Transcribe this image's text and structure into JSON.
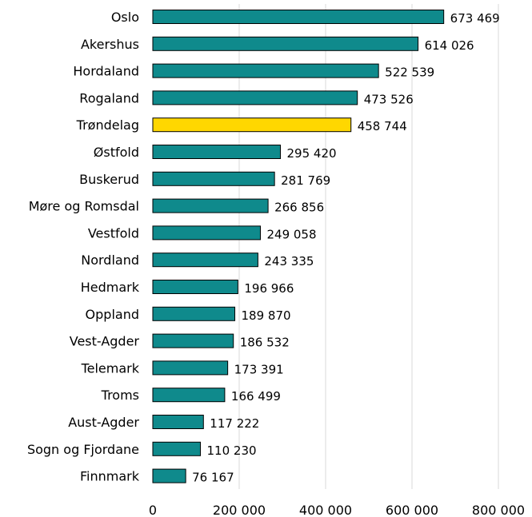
{
  "chart_data": {
    "type": "bar",
    "orientation": "horizontal",
    "title": "",
    "xlabel": "",
    "ylabel": "",
    "xlim": [
      0,
      800000
    ],
    "x_ticks": [
      0,
      200000,
      400000,
      600000,
      800000
    ],
    "x_tick_labels": [
      "0",
      "200 000",
      "400 000",
      "600 000",
      "800 000"
    ],
    "grid": "vertical",
    "legend": "none",
    "categories": [
      "Oslo",
      "Akershus",
      "Hordaland",
      "Rogaland",
      "Trøndelag",
      "Østfold",
      "Buskerud",
      "Møre og Romsdal",
      "Vestfold",
      "Nordland",
      "Hedmark",
      "Oppland",
      "Vest-Agder",
      "Telemark",
      "Troms",
      "Aust-Agder",
      "Sogn og Fjordane",
      "Finnmark"
    ],
    "values": [
      673469,
      614026,
      522539,
      473526,
      458744,
      295420,
      281769,
      266856,
      249058,
      243335,
      196966,
      189870,
      186532,
      173391,
      166499,
      117222,
      110230,
      76167
    ],
    "value_labels": [
      "673 469",
      "614 026",
      "522 539",
      "473 526",
      "458 744",
      "295 420",
      "281 769",
      "266 856",
      "249 058",
      "243 335",
      "196 966",
      "189 870",
      "186 532",
      "173 391",
      "166 499",
      "117 222",
      "110 230",
      "76 167"
    ],
    "highlight_index": 4,
    "colors": {
      "bar": "#0f8a8c",
      "highlight": "#ffd700"
    }
  }
}
